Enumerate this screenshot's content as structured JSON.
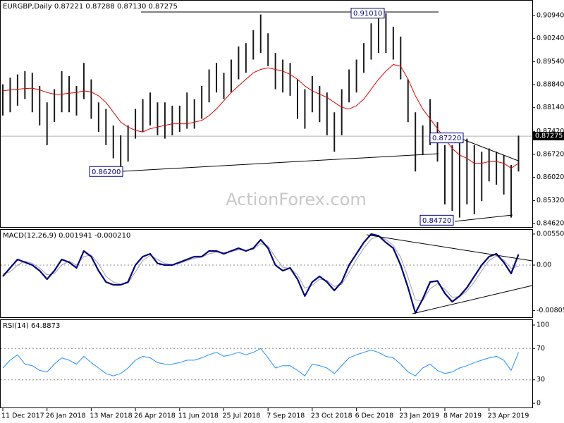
{
  "chart_data": [
    {
      "type": "hilo",
      "title": "EURGBP,Daily  0.87221 0.87288 0.87130 0.87275",
      "categories": [
        "11 Dec 2017",
        null,
        null,
        null,
        null,
        null,
        "26 Jan 2018",
        null,
        null,
        null,
        null,
        null,
        "13 Mar 2018",
        null,
        null,
        null,
        null,
        null,
        "26 Apr 2018",
        null,
        null,
        null,
        null,
        null,
        "11 Jun 2018",
        null,
        null,
        null,
        null,
        null,
        "25 Jul 2018",
        null,
        null,
        null,
        null,
        null,
        "7 Sep 2018",
        null,
        null,
        null,
        null,
        null,
        "23 Oct 2018",
        null,
        null,
        null,
        null,
        null,
        "6 Dec 2018",
        null,
        null,
        null,
        null,
        null,
        "23 Jan 2019",
        null,
        null,
        null,
        null,
        null,
        "8 Mar 2019",
        null,
        null,
        null,
        null,
        null,
        "23 Apr 2019",
        null,
        null,
        null,
        null
      ],
      "high": [
        0.8885,
        0.8905,
        0.8915,
        0.8925,
        0.892,
        0.888,
        0.883,
        0.887,
        0.8925,
        0.891,
        0.888,
        0.895,
        0.89,
        0.883,
        0.881,
        0.876,
        0.873,
        0.876,
        0.881,
        0.884,
        0.886,
        0.883,
        0.883,
        0.882,
        0.882,
        0.886,
        0.884,
        0.888,
        0.893,
        0.895,
        0.892,
        0.896,
        0.9,
        0.901,
        0.905,
        0.9097,
        0.904,
        0.898,
        0.896,
        0.895,
        0.89,
        0.887,
        0.891,
        0.888,
        0.886,
        0.88,
        0.887,
        0.893,
        0.896,
        0.901,
        0.907,
        0.909,
        0.9101,
        0.906,
        0.903,
        0.89,
        0.88,
        0.876,
        0.884,
        0.877,
        0.87,
        0.87,
        0.872,
        0.872,
        0.87,
        0.868,
        0.869,
        0.868,
        0.867,
        0.864,
        0.8729
      ],
      "low": [
        0.879,
        0.88,
        0.882,
        0.884,
        0.88,
        0.876,
        0.87,
        0.877,
        0.88,
        0.88,
        0.879,
        0.884,
        0.878,
        0.874,
        0.87,
        0.866,
        0.863,
        0.865,
        0.872,
        0.874,
        0.876,
        0.873,
        0.872,
        0.873,
        0.874,
        0.875,
        0.875,
        0.878,
        0.883,
        0.886,
        0.884,
        0.886,
        0.89,
        0.892,
        0.896,
        0.898,
        0.894,
        0.887,
        0.886,
        0.885,
        0.878,
        0.875,
        0.88,
        0.877,
        0.873,
        0.868,
        0.873,
        0.883,
        0.886,
        0.892,
        0.896,
        0.898,
        0.898,
        0.896,
        0.89,
        0.877,
        0.862,
        0.867,
        0.87,
        0.865,
        0.852,
        0.85,
        0.848,
        0.852,
        0.849,
        0.853,
        0.859,
        0.858,
        0.855,
        0.848,
        0.862
      ],
      "color": "#1a1a1a",
      "ma_values": [
        0.8865,
        0.8868,
        0.887,
        0.8872,
        0.8873,
        0.8868,
        0.886,
        0.8855,
        0.8855,
        0.8858,
        0.886,
        0.8865,
        0.8862,
        0.885,
        0.883,
        0.88,
        0.877,
        0.8755,
        0.8745,
        0.874,
        0.875,
        0.8755,
        0.876,
        0.8765,
        0.8765,
        0.8765,
        0.877,
        0.8775,
        0.879,
        0.881,
        0.8835,
        0.886,
        0.888,
        0.89,
        0.892,
        0.893,
        0.8935,
        0.893,
        0.8925,
        0.8915,
        0.89,
        0.888,
        0.8865,
        0.8855,
        0.8845,
        0.883,
        0.8815,
        0.881,
        0.882,
        0.884,
        0.887,
        0.89,
        0.8925,
        0.8945,
        0.894,
        0.89,
        0.885,
        0.881,
        0.878,
        0.875,
        0.872,
        0.869,
        0.867,
        0.866,
        0.8645,
        0.8645,
        0.865,
        0.865,
        0.8645,
        0.863,
        0.8645
      ],
      "ma_color": "#e00000",
      "ylim": [
        0.84513,
        0.91411
      ],
      "yticks": [
        {
          "value": 0.9094,
          "label": "0.90940"
        },
        {
          "value": 0.9024,
          "label": "0.90240"
        },
        {
          "value": 0.8954,
          "label": "0.89540"
        },
        {
          "value": 0.8884,
          "label": "0.88840"
        },
        {
          "value": 0.8814,
          "label": "0.88140"
        },
        {
          "value": 0.8742,
          "label": "0.87420"
        },
        {
          "value": 0.8672,
          "label": "0.86720"
        },
        {
          "value": 0.8602,
          "label": "0.86020"
        },
        {
          "value": 0.8532,
          "label": "0.85320"
        },
        {
          "value": 0.8462,
          "label": "0.84620"
        }
      ],
      "last": 0.87275,
      "annotations": [
        {
          "value": 0.9101,
          "label": "0.91010"
        },
        {
          "value": 0.862,
          "label": "0.86200"
        },
        {
          "value": 0.8722,
          "label": "0.87220"
        },
        {
          "value": 0.8472,
          "label": "0.84720"
        }
      ]
    },
    {
      "type": "macd",
      "title": "MACD(12,26,9) 0.001941 -0.000210",
      "series": [
        {
          "color": "#000080",
          "values": [
            -0.002,
            -0.0005,
            0.001,
            0.0005,
            0,
            -0.001,
            -0.0025,
            -0.001,
            0.001,
            0.0005,
            -0.0005,
            0.0025,
            0.0015,
            -0.001,
            -0.003,
            -0.0035,
            -0.0035,
            -0.003,
            0,
            0.0015,
            0.002,
            0.0003,
            0,
            0,
            0.0005,
            0.001,
            0.0015,
            0.0015,
            0.0025,
            0.0025,
            0.002,
            0.0025,
            0.003,
            0.0025,
            0.003,
            0.0045,
            0.003,
            0,
            -0.001,
            -0.0005,
            -0.0025,
            -0.0055,
            -0.003,
            -0.002,
            -0.003,
            -0.0045,
            -0.003,
            0,
            0.002,
            0.004,
            0.0055,
            0.0052,
            0.004,
            0.003,
            0,
            -0.004,
            -0.0085,
            -0.006,
            -0.003,
            -0.0028,
            -0.005,
            -0.0065,
            -0.0055,
            -0.004,
            -0.002,
            0,
            0.0015,
            0.002,
            0.0005,
            -0.0015,
            0.0019
          ]
        },
        {
          "color": "#a0a0a0",
          "values": [
            -0.0015,
            -0.0012,
            0,
            0.0007,
            0.0003,
            -0.0005,
            -0.0017,
            -0.0015,
            0,
            0.0007,
            0,
            0.0015,
            0.0018,
            0.0002,
            -0.002,
            -0.003,
            -0.0034,
            -0.0032,
            -0.0012,
            0.0008,
            0.0017,
            0.001,
            0.0003,
            0.0001,
            0.0003,
            0.0008,
            0.0012,
            0.0014,
            0.002,
            0.0023,
            0.0022,
            0.0024,
            0.0027,
            0.0026,
            0.0028,
            0.0038,
            0.0034,
            0.0014,
            -0.0004,
            -0.0006,
            -0.0017,
            -0.0041,
            -0.0036,
            -0.0025,
            -0.0027,
            -0.0038,
            -0.0034,
            -0.0013,
            0.001,
            0.003,
            0.0046,
            0.0051,
            0.0045,
            0.0035,
            0.0014,
            -0.0022,
            -0.0062,
            -0.0063,
            -0.0042,
            -0.0033,
            -0.0043,
            -0.0057,
            -0.0056,
            -0.0046,
            -0.003,
            -0.001,
            0.0008,
            0.0016,
            0.0009,
            -0.0006,
            -0.0002
          ]
        }
      ],
      "ylim": [
        -0.00925,
        0.006375
      ],
      "yticks": [
        0.005504,
        {
          "value": 0,
          "label": "0.00"
        },
        -0.00805
      ],
      "levels": [
        0
      ]
    },
    {
      "type": "rsi",
      "title": "RSI(14) 64.8873",
      "series": [
        {
          "color": "#1e90ff",
          "values": [
            45,
            55,
            62,
            50,
            48,
            42,
            40,
            50,
            58,
            55,
            50,
            60,
            52,
            45,
            38,
            35,
            38,
            45,
            55,
            60,
            58,
            52,
            50,
            50,
            52,
            55,
            55,
            58,
            62,
            65,
            60,
            62,
            65,
            62,
            65,
            70,
            58,
            45,
            48,
            48,
            42,
            35,
            50,
            48,
            45,
            38,
            48,
            58,
            62,
            65,
            68,
            65,
            60,
            58,
            50,
            40,
            35,
            45,
            50,
            42,
            38,
            40,
            45,
            48,
            52,
            55,
            58,
            60,
            55,
            42,
            65
          ]
        }
      ],
      "ylim": [
        -5.4,
        107.2
      ],
      "yticks": [
        100,
        70,
        30,
        0
      ],
      "levels": [
        70,
        30
      ]
    }
  ],
  "watermark": "ActionForex.com"
}
